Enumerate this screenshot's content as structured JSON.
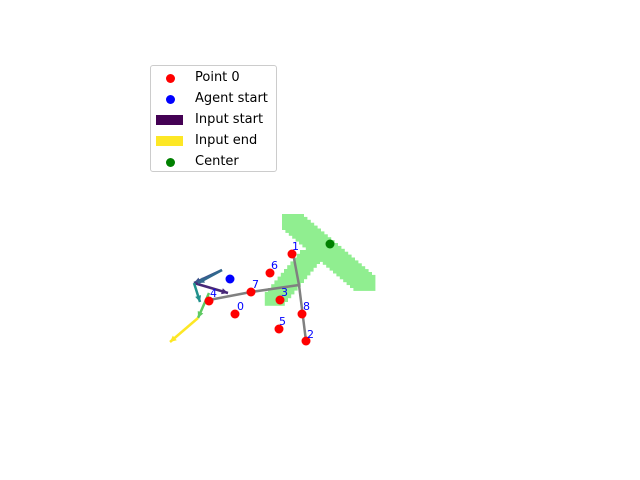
{
  "colors": {
    "region": "#90ee90",
    "connector": "#808080",
    "point": "#ff0000",
    "agent": "#0000ff",
    "center": "#008000",
    "label": "#0000ff",
    "input_start": "#440154",
    "input_end": "#fde725"
  },
  "legend": {
    "items": [
      {
        "label": "Point 0",
        "kind": "dot",
        "color": "#ff0000"
      },
      {
        "label": "Agent start",
        "kind": "dot",
        "color": "#0000ff"
      },
      {
        "label": "Input start",
        "kind": "swatch",
        "color": "#440154"
      },
      {
        "label": "Input end",
        "kind": "swatch",
        "color": "#fde725"
      },
      {
        "label": "Center",
        "kind": "dot",
        "color": "#008000"
      }
    ]
  },
  "plot": {
    "point_labels": [
      "0",
      "1",
      "2",
      "3",
      "4",
      "5",
      "6",
      "7",
      "8"
    ],
    "agent_start_label": "Agent start",
    "center_label": "Center"
  }
}
